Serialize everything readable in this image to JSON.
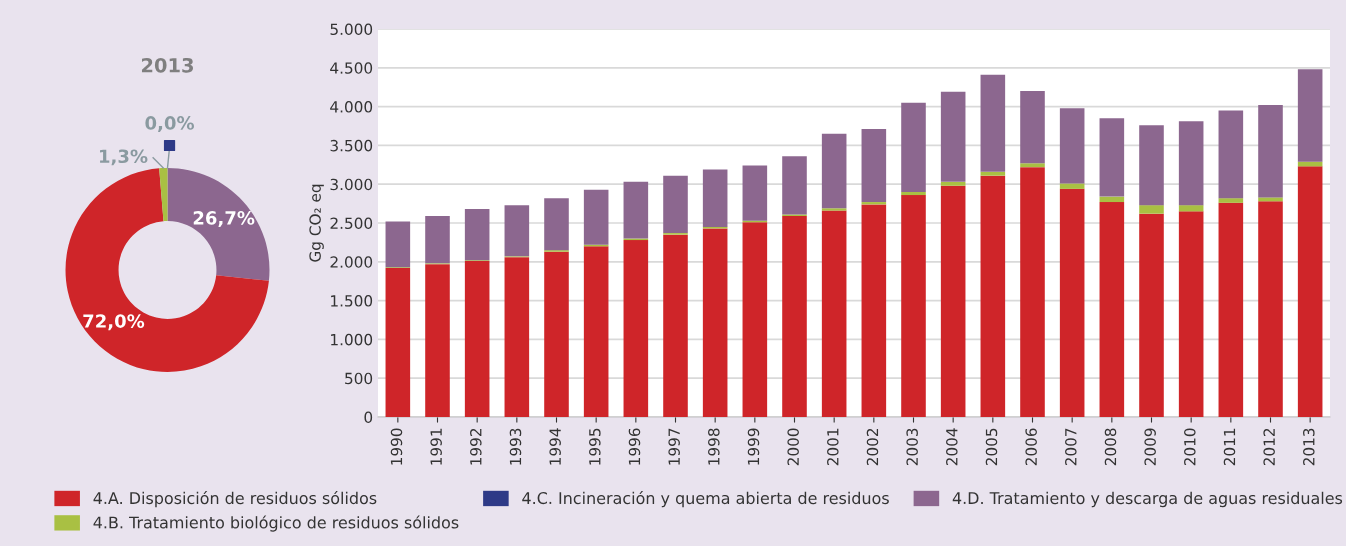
{
  "chart_data": [
    {
      "type": "donut",
      "title": "2013",
      "categories": [
        null,
        null,
        null,
        null
      ],
      "values": [
        26.7,
        72.0,
        1.3,
        0.0
      ],
      "colors": [
        "#8c678f",
        "#cf2529",
        "#a9c043",
        "#2e3a87"
      ],
      "value_labels": [
        "26,7%",
        "72,0%",
        "1,3%",
        "0,0%"
      ],
      "legend": false
    },
    {
      "type": "bar",
      "stacked": true,
      "ylabel": "Gg CO₂ eq",
      "categories": [
        "1990",
        "1991",
        "1992",
        "1993",
        "1994",
        "1995",
        "1996",
        "1997",
        "1998",
        "1999",
        "2000",
        "2001",
        "2002",
        "2003",
        "2004",
        "2005",
        "2006",
        "2007",
        "2008",
        "2009",
        "2010",
        "2011",
        "2012",
        "2013"
      ],
      "series": [
        {
          "name": "4.A. Disposición de residuos sólidos",
          "color": "#cf2529",
          "values": [
            1920,
            1970,
            2010,
            2060,
            2130,
            2200,
            2280,
            2350,
            2430,
            2510,
            2590,
            2660,
            2740,
            2860,
            2980,
            3110,
            3220,
            2940,
            2770,
            2620,
            2650,
            2760,
            2780,
            3230
          ]
        },
        {
          "name": "4.B. Tratamiento biológico de residuos sólidos",
          "color": "#a9c043",
          "values": [
            10,
            10,
            10,
            10,
            20,
            20,
            20,
            20,
            20,
            20,
            20,
            30,
            30,
            40,
            50,
            50,
            50,
            70,
            70,
            110,
            80,
            60,
            50,
            60
          ]
        },
        {
          "name": "4.C. Incineración y quema abierta de residuos",
          "color": "#2e3a87",
          "values": [
            0,
            0,
            0,
            0,
            0,
            0,
            0,
            0,
            0,
            0,
            0,
            0,
            0,
            0,
            0,
            0,
            0,
            0,
            0,
            0,
            0,
            0,
            0,
            0
          ]
        },
        {
          "name": "4.D. Tratamiento y descarga de aguas residuales",
          "color": "#8c678f",
          "values": [
            590,
            610,
            660,
            660,
            670,
            710,
            730,
            740,
            740,
            710,
            750,
            960,
            940,
            1150,
            1160,
            1250,
            930,
            970,
            1010,
            1030,
            1080,
            1130,
            1190,
            1190
          ]
        }
      ],
      "ylim": [
        0,
        5000
      ],
      "yticks": [
        {
          "value": 0,
          "label": "0"
        },
        {
          "value": 500,
          "label": "500"
        },
        {
          "value": 1000,
          "label": "1.000"
        },
        {
          "value": 1500,
          "label": "1.500"
        },
        {
          "value": 2000,
          "label": "2.000"
        },
        {
          "value": 2500,
          "label": "2.500"
        },
        {
          "value": 3000,
          "label": "3.000"
        },
        {
          "value": 3500,
          "label": "3.500"
        },
        {
          "value": 4000,
          "label": "4.000"
        },
        {
          "value": 4500,
          "label": "4.500"
        },
        {
          "value": 5000,
          "label": "5.000"
        }
      ],
      "grid": "y",
      "legend": "bottom"
    }
  ]
}
